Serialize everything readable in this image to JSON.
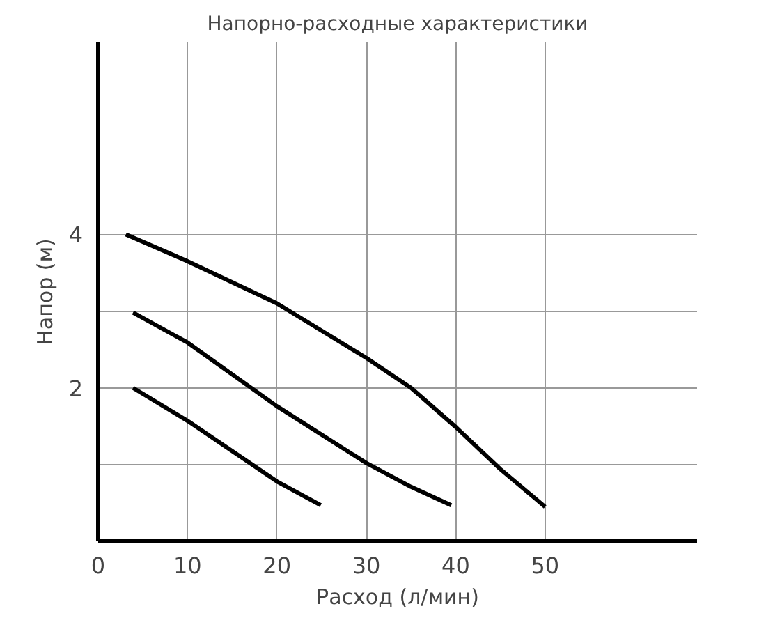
{
  "chart_data": {
    "type": "line",
    "title": "Напорно-расходные характеристики",
    "xlabel": "Расход (л/мин)",
    "ylabel": "Напор (м)",
    "xlim": [
      0,
      67
    ],
    "ylim": [
      0,
      6.5
    ],
    "xticks": [
      0,
      10,
      20,
      30,
      40,
      50
    ],
    "yticks": [
      {
        "value": 1,
        "label": null
      },
      2,
      {
        "value": 3,
        "label": null
      },
      4
    ],
    "grid": true,
    "marker": "none",
    "line_style": "solid",
    "series": [
      {
        "color": "#000000",
        "x": [
          3.1,
          10,
          20,
          30,
          35,
          40,
          45,
          50
        ],
        "values": [
          4.0,
          3.65,
          3.1,
          2.39,
          2.0,
          1.49,
          0.94,
          0.45
        ]
      },
      {
        "color": "#000000",
        "x": [
          3.9,
          10,
          20,
          30,
          35,
          39.5
        ],
        "values": [
          2.98,
          2.59,
          1.76,
          1.02,
          0.71,
          0.47
        ]
      },
      {
        "color": "#000000",
        "x": [
          3.9,
          10,
          20,
          24.9
        ],
        "values": [
          2.0,
          1.57,
          0.78,
          0.47
        ]
      }
    ]
  }
}
